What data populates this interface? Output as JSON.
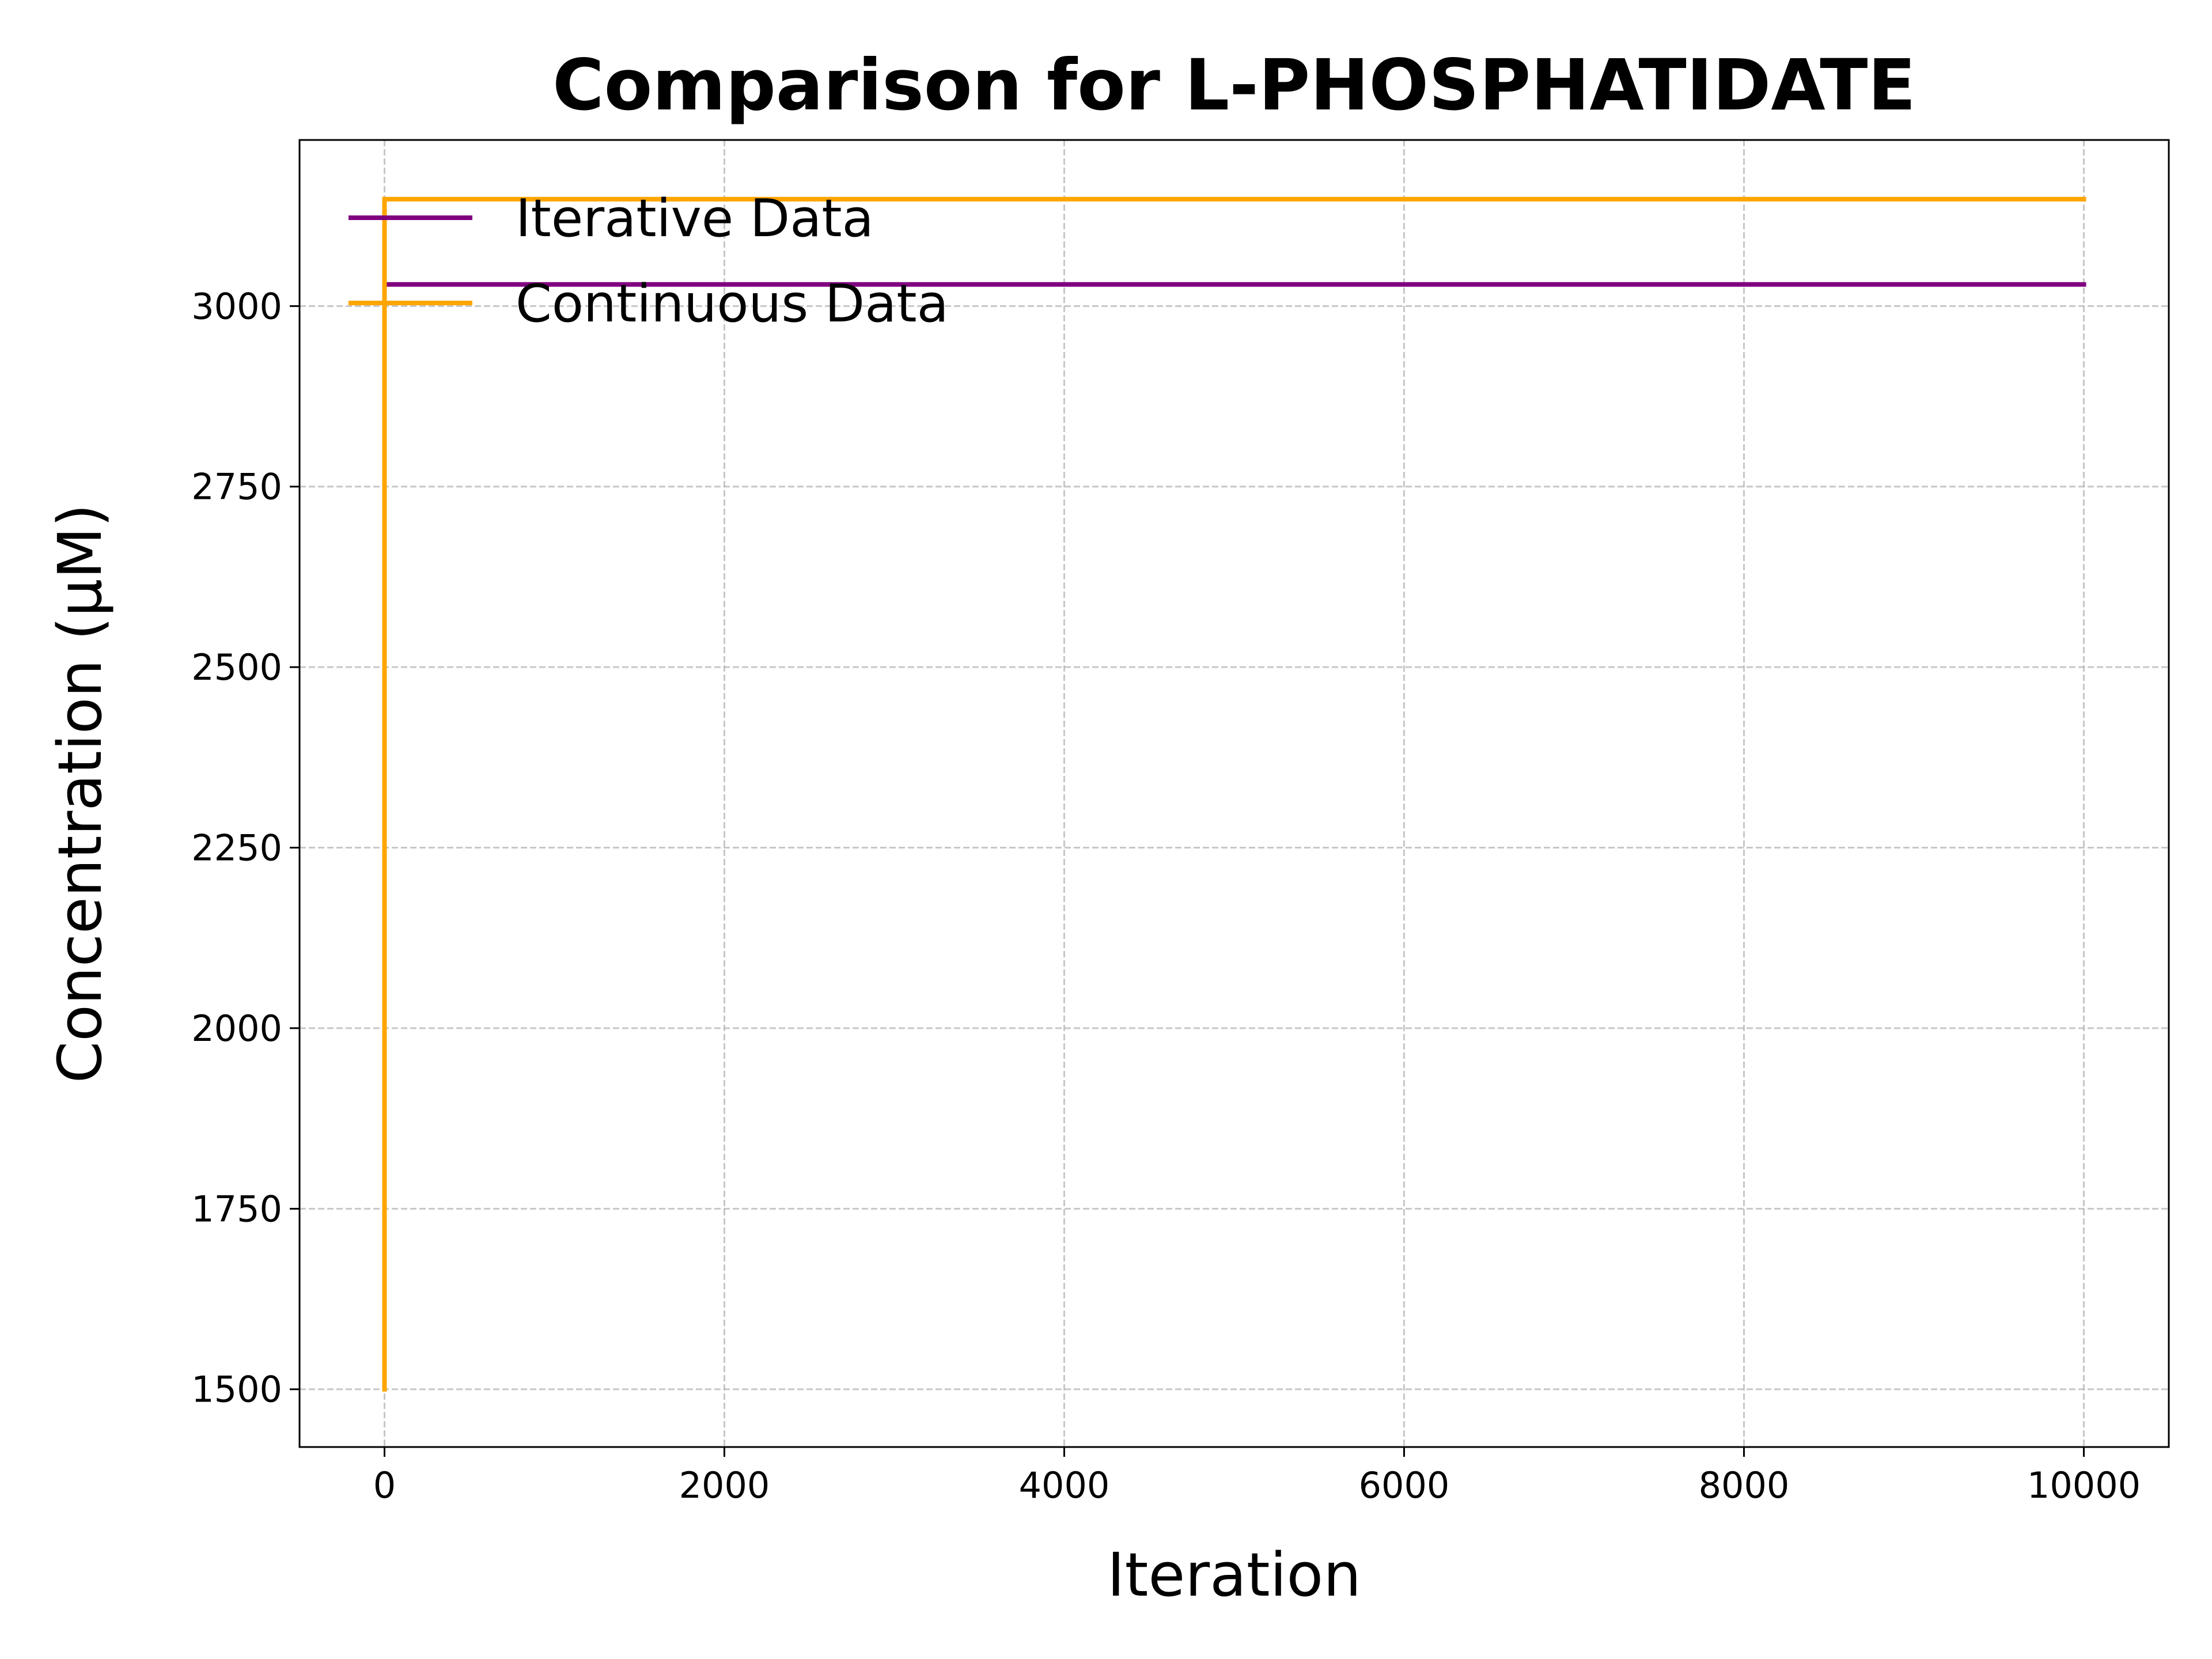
{
  "chart_data": {
    "type": "line",
    "title": "Comparison for L-PHOSPHATIDATE",
    "xlabel": "Iteration",
    "ylabel": "Concentration (μM)",
    "xlim": [
      -500,
      10500
    ],
    "ylim": [
      1420,
      3230
    ],
    "x_ticks": [
      0,
      2000,
      4000,
      6000,
      8000,
      10000
    ],
    "y_ticks": [
      1500,
      1750,
      2000,
      2250,
      2500,
      2750,
      3000
    ],
    "grid": true,
    "legend_position": "upper-left",
    "series": [
      {
        "name": "Iterative Data",
        "color": "#800080",
        "x": [
          0,
          10000
        ],
        "y": [
          3030,
          3030
        ]
      },
      {
        "name": "Continuous Data",
        "color": "#FFA500",
        "x": [
          0,
          0,
          10000
        ],
        "y": [
          1500,
          3148,
          3148
        ]
      }
    ]
  }
}
